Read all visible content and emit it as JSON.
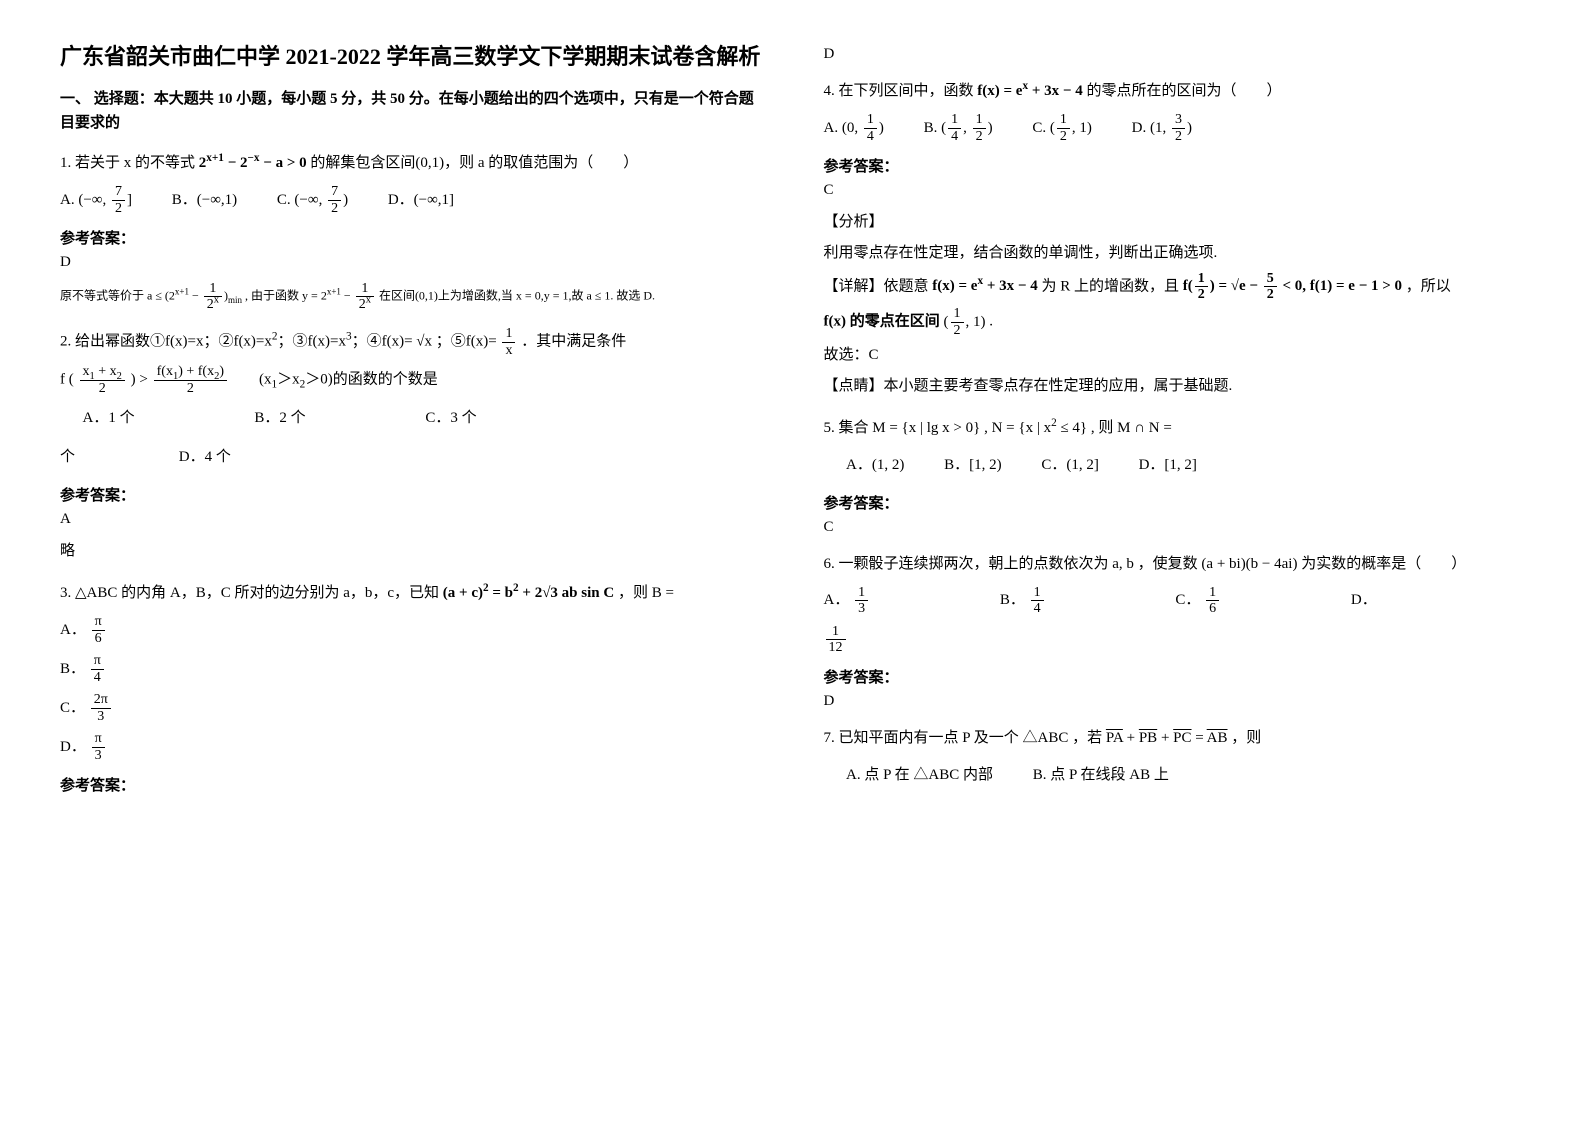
{
  "title": "广东省韶关市曲仁中学 2021-2022 学年高三数学文下学期期末试卷含解析",
  "section1": "一、 选择题：本大题共 10 小题，每小题 5 分，共 50 分。在每小题给出的四个选项中，只有是一个符合题目要求的",
  "q1": {
    "stem_a": "1. 若关于 x 的不等式",
    "stem_b": "的解集包含区间(0,1)，则 a 的取值范围为（　　）",
    "expr": "2<sup>x+1</sup> − 2<sup>−x</sup> − a > 0",
    "optA_l": "A.",
    "optA_m": "(−∞, <span class='frac'><span class='num'>7</span><span class='den'>2</span></span>]",
    "optB": "B．(−∞,1)",
    "optC_l": "C.",
    "optC_m": "(−∞, <span class='frac'><span class='num'>7</span><span class='den'>2</span></span>)",
    "optD": "D．(−∞,1]",
    "ansLabel": "参考答案：",
    "ans": "D",
    "expl": "原不等式等价于 a ≤ (2<sup>x+1</sup> − <span class='frac'><span class='num'>1</span><span class='den'>2<sup>x</sup></span></span>)<sub>min</sub> , 由于函数 y = 2<sup>x+1</sup> − <span class='frac'><span class='num'>1</span><span class='den'>2<sup>x</sup></span></span> 在区间(0,1)上为增函数,当 x = 0,y = 1,故 a ≤ 1. 故选 D."
  },
  "q2": {
    "stem": "2. 给出幂函数①f(x)=x；②f(x)=x<sup>2</sup>；③f(x)=x<sup>3</sup>；④f(x)= √x ；⑤f(x)= <span class='frac'><span class='num'>1</span><span class='den'>x</span></span> ．其中满足条件",
    "cond": "f ( <span class='frac'><span class='num'>x<sub>1</sub> + x<sub>2</sub></span><span class='den'>2</span></span> ) &gt; <span class='frac'><span class='num'>f(x<sub>1</sub>) + f(x<sub>2</sub>)</span><span class='den'>2</span></span>　　(x<sub>1</sub>＞x<sub>2</sub>＞0)的函数的个数是",
    "optA": "A．1 个",
    "optB": "B．2 个",
    "optC": "C．3 个",
    "optD": "D．4 个",
    "ansLabel": "参考答案：",
    "ans": "A",
    "expl": "略"
  },
  "q3": {
    "stem_a": "3. △ABC 的内角 A，B，C 所对的边分别为 a，b，c，已知",
    "stem_b": "，则 B =",
    "expr": "(a + c)<sup>2</sup> = b<sup>2</sup> + 2√3 ab sin C",
    "optA_l": "A．",
    "optA_m": "<span class='frac'><span class='num'>π</span><span class='den'>6</span></span>",
    "optB_l": "B．",
    "optB_m": "<span class='frac'><span class='num'>π</span><span class='den'>4</span></span>",
    "optC_l": "C．",
    "optC_m": "<span class='frac'><span class='num'>2π</span><span class='den'>3</span></span>",
    "optD_l": "D．",
    "optD_m": "<span class='frac'><span class='num'>π</span><span class='den'>3</span></span>",
    "ansLabel": "参考答案：",
    "ans": "D"
  },
  "q4": {
    "stem_a": "4. 在下列区间中，函数",
    "stem_b": "的零点所在的区间为（　　）",
    "expr": "f(x) = e<sup>x</sup> + 3x − 4",
    "optA_l": "A.",
    "optA_m": "(0, <span class='frac'><span class='num'>1</span><span class='den'>4</span></span>)",
    "optB_l": "B.",
    "optB_m": "(<span class='frac'><span class='num'>1</span><span class='den'>4</span></span>, <span class='frac'><span class='num'>1</span><span class='den'>2</span></span>)",
    "optC_l": "C.",
    "optC_m": "(<span class='frac'><span class='num'>1</span><span class='den'>2</span></span>, 1)",
    "optD_l": "D.",
    "optD_m": "(1, <span class='frac'><span class='num'>3</span><span class='den'>2</span></span>)",
    "ansLabel": "参考答案：",
    "ans": "C",
    "a1": "【分析】",
    "a2": "利用零点存在性定理，结合函数的单调性，判断出正确选项.",
    "a3a": "【详解】依题意",
    "a3b": "为 R 上的增函数，且",
    "a3c": "，所以",
    "expr2": "f(<span class='frac'><span class='num'>1</span><span class='den'>2</span></span>) = √e − <span class='frac'><span class='num'>5</span><span class='den'>2</span></span> &lt; 0,  f(1) = e − 1 &gt; 0",
    "a4a": "f(x) 的零点在区间",
    "a4b": "(<span class='frac'><span class='num'>1</span><span class='den'>2</span></span>, 1)",
    "a4c": ".",
    "a5": "故选：C",
    "a6": "【点睛】本小题主要考查零点存在性定理的应用，属于基础题."
  },
  "q5": {
    "stem": "5. 集合 M = {x | lg x &gt; 0} , N = {x | x<sup>2</sup> ≤ 4} , 则 M ∩ N =",
    "optA": "A．(1, 2)",
    "optB": "B．[1, 2)",
    "optC": "C．(1, 2]",
    "optD": "D．[1, 2]",
    "ansLabel": "参考答案：",
    "ans": "C"
  },
  "q6": {
    "stem": "6. 一颗骰子连续掷两次，朝上的点数依次为 a, b ，使复数 (a + bi)(b − 4ai) 为实数的概率是（　　）",
    "optA_l": "A．",
    "optA_m": "<span class='frac'><span class='num'>1</span><span class='den'>3</span></span>",
    "optB_l": "B．",
    "optB_m": "<span class='frac'><span class='num'>1</span><span class='den'>4</span></span>",
    "optC_l": "C．",
    "optC_m": "<span class='frac'><span class='num'>1</span><span class='den'>6</span></span>",
    "optD_l": "D．",
    "optD_m": "<span class='frac'><span class='num'>1</span><span class='den'>12</span></span>",
    "ansLabel": "参考答案：",
    "ans": "D"
  },
  "q7": {
    "stem": "7. 已知平面内有一点 P 及一个 △ABC ，若 <span class='ovl'>PA</span> + <span class='ovl'>PB</span> + <span class='ovl'>PC</span> = <span class='ovl'>AB</span> ，则",
    "optA": "A. 点 P 在 △ABC 内部",
    "optB": "B. 点 P 在线段 AB 上"
  }
}
